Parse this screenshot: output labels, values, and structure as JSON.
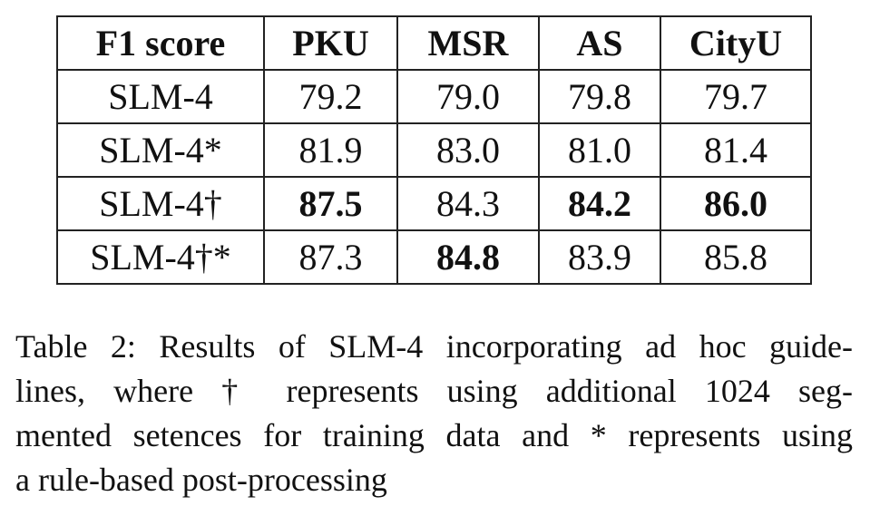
{
  "table": {
    "header": [
      "F1 score",
      "PKU",
      "MSR",
      "AS",
      "CityU"
    ],
    "rows": [
      [
        "SLM-4",
        "79.2",
        "79.0",
        "79.8",
        "79.7"
      ],
      [
        "SLM-4*",
        "81.9",
        "83.0",
        "81.0",
        "81.4"
      ],
      [
        "SLM-4†",
        "87.5",
        "84.3",
        "84.2",
        "86.0"
      ],
      [
        "SLM-4†*",
        "87.3",
        "84.8",
        "83.9",
        "85.8"
      ]
    ],
    "bold": [
      [
        false,
        false,
        false,
        false,
        false
      ],
      [
        false,
        false,
        false,
        false,
        false
      ],
      [
        false,
        true,
        false,
        true,
        true
      ],
      [
        false,
        false,
        true,
        false,
        false
      ]
    ]
  },
  "caption": {
    "lines": [
      "Table 2: Results of SLM-4 incorporating ad hoc guide-",
      "lines, where † represents using additional 1024 seg-",
      "mented setences for training data and * represents using",
      "a rule-based post-processing"
    ]
  }
}
